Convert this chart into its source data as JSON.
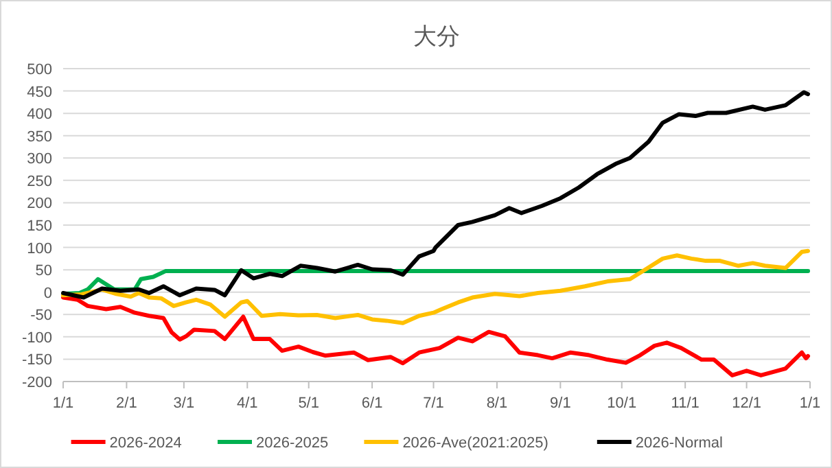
{
  "chart_data": {
    "type": "line",
    "title": "大分",
    "xlim": [
      "2026-01-01",
      "2027-01-01"
    ],
    "xticks": [
      {
        "value": "2026-01-01",
        "label": "1/1"
      },
      {
        "value": "2026-02-01",
        "label": "2/1"
      },
      {
        "value": "2026-03-01",
        "label": "3/1"
      },
      {
        "value": "2026-04-01",
        "label": "4/1"
      },
      {
        "value": "2026-05-01",
        "label": "5/1"
      },
      {
        "value": "2026-06-01",
        "label": "6/1"
      },
      {
        "value": "2026-07-01",
        "label": "7/1"
      },
      {
        "value": "2026-08-01",
        "label": "8/1"
      },
      {
        "value": "2026-09-01",
        "label": "9/1"
      },
      {
        "value": "2026-10-01",
        "label": "10/1"
      },
      {
        "value": "2026-11-01",
        "label": "11/1"
      },
      {
        "value": "2026-12-01",
        "label": "12/1"
      },
      {
        "value": "2027-01-01",
        "label": "1/1"
      }
    ],
    "ylim": [
      -200,
      500
    ],
    "yticks": [
      -200,
      -150,
      -100,
      -50,
      0,
      50,
      100,
      150,
      200,
      250,
      300,
      350,
      400,
      450,
      500
    ],
    "grid": "y",
    "legend": "bottom",
    "series": [
      {
        "name": "2026-2024",
        "color": "#ff0000",
        "x": [
          "2026-01-01",
          "2026-01-08",
          "2026-01-13",
          "2026-01-22",
          "2026-01-29",
          "2026-02-05",
          "2026-02-12",
          "2026-02-19",
          "2026-02-23",
          "2026-02-27",
          "2026-03-02",
          "2026-03-06",
          "2026-03-16",
          "2026-03-21",
          "2026-03-30",
          "2026-04-04",
          "2026-04-12",
          "2026-04-18",
          "2026-04-26",
          "2026-05-03",
          "2026-05-09",
          "2026-05-23",
          "2026-05-30",
          "2026-06-10",
          "2026-06-16",
          "2026-06-24",
          "2026-07-01",
          "2026-07-04",
          "2026-07-13",
          "2026-07-20",
          "2026-07-28",
          "2026-08-05",
          "2026-08-12",
          "2026-08-21",
          "2026-08-28",
          "2026-09-06",
          "2026-09-15",
          "2026-09-24",
          "2026-10-03",
          "2026-10-10",
          "2026-10-17",
          "2026-10-23",
          "2026-10-30",
          "2026-11-09",
          "2026-11-15",
          "2026-11-24",
          "2026-12-01",
          "2026-12-08",
          "2026-12-20",
          "2026-12-28",
          "2026-12-30",
          "2026-12-31"
        ],
        "values": [
          -12,
          -17,
          -31,
          -38,
          -33,
          -46,
          -53,
          -58,
          -90,
          -106,
          -99,
          -84,
          -87,
          -105,
          -55,
          -105,
          -105,
          -131,
          -122,
          -134,
          -142,
          -135,
          -152,
          -145,
          -159,
          -135,
          -128,
          -125,
          -102,
          -110,
          -89,
          -99,
          -135,
          -141,
          -148,
          -135,
          -141,
          -151,
          -158,
          -141,
          -120,
          -113,
          -125,
          -151,
          -151,
          -186,
          -176,
          -186,
          -171,
          -135,
          -148,
          -143
        ]
      },
      {
        "name": "2026-2025",
        "color": "#00b050",
        "x": [
          "2026-01-01",
          "2026-01-09",
          "2026-01-13",
          "2026-01-18",
          "2026-01-26",
          "2026-02-05",
          "2026-02-08",
          "2026-02-14",
          "2026-02-20",
          "2026-12-31"
        ],
        "values": [
          -4,
          -2,
          6,
          29,
          6,
          6,
          29,
          34,
          47,
          47
        ]
      },
      {
        "name": "2026-Ave(2021:2025)",
        "color": "#ffc000",
        "x": [
          "2026-01-01",
          "2026-01-10",
          "2026-01-20",
          "2026-01-27",
          "2026-02-03",
          "2026-02-07",
          "2026-02-12",
          "2026-02-18",
          "2026-02-24",
          "2026-03-02",
          "2026-03-07",
          "2026-03-14",
          "2026-03-21",
          "2026-03-29",
          "2026-04-01",
          "2026-04-08",
          "2026-04-17",
          "2026-04-26",
          "2026-05-05",
          "2026-05-14",
          "2026-05-25",
          "2026-06-01",
          "2026-06-08",
          "2026-06-16",
          "2026-06-24",
          "2026-07-01",
          "2026-07-05",
          "2026-07-13",
          "2026-07-20",
          "2026-07-31",
          "2026-08-12",
          "2026-08-21",
          "2026-09-01",
          "2026-09-13",
          "2026-09-24",
          "2026-10-05",
          "2026-10-12",
          "2026-10-21",
          "2026-10-28",
          "2026-11-04",
          "2026-11-11",
          "2026-11-18",
          "2026-11-27",
          "2026-12-04",
          "2026-12-10",
          "2026-12-20",
          "2026-12-28",
          "2026-12-31"
        ],
        "values": [
          -7,
          -5,
          6,
          -4,
          -10,
          -2,
          -12,
          -14,
          -31,
          -23,
          -17,
          -28,
          -55,
          -23,
          -20,
          -53,
          -49,
          -52,
          -51,
          -58,
          -51,
          -61,
          -64,
          -69,
          -53,
          -46,
          -38,
          -23,
          -12,
          -4,
          -9,
          -2,
          3,
          13,
          24,
          29,
          49,
          75,
          82,
          75,
          70,
          70,
          59,
          65,
          59,
          54,
          90,
          92
        ]
      },
      {
        "name": "2026-Normal",
        "color": "#000000",
        "x": [
          "2026-01-01",
          "2026-01-11",
          "2026-01-20",
          "2026-01-29",
          "2026-02-07",
          "2026-02-12",
          "2026-02-19",
          "2026-02-27",
          "2026-03-07",
          "2026-03-16",
          "2026-03-21",
          "2026-03-29",
          "2026-04-04",
          "2026-04-12",
          "2026-04-18",
          "2026-04-27",
          "2026-05-05",
          "2026-05-14",
          "2026-05-25",
          "2026-06-01",
          "2026-06-10",
          "2026-06-16",
          "2026-06-24",
          "2026-07-01",
          "2026-07-02",
          "2026-07-13",
          "2026-07-20",
          "2026-07-31",
          "2026-08-07",
          "2026-08-13",
          "2026-08-23",
          "2026-09-01",
          "2026-09-10",
          "2026-09-19",
          "2026-09-28",
          "2026-10-05",
          "2026-10-14",
          "2026-10-21",
          "2026-10-29",
          "2026-11-06",
          "2026-11-12",
          "2026-11-21",
          "2026-12-04",
          "2026-12-10",
          "2026-12-20",
          "2026-12-29",
          "2026-12-31"
        ],
        "values": [
          -2,
          -12,
          8,
          3,
          6,
          -2,
          13,
          -7,
          8,
          5,
          -7,
          49,
          31,
          41,
          36,
          59,
          54,
          46,
          61,
          51,
          49,
          39,
          80,
          92,
          100,
          150,
          157,
          172,
          188,
          177,
          193,
          210,
          234,
          264,
          287,
          300,
          336,
          379,
          398,
          394,
          401,
          401,
          415,
          408,
          418,
          447,
          443
        ]
      }
    ]
  }
}
